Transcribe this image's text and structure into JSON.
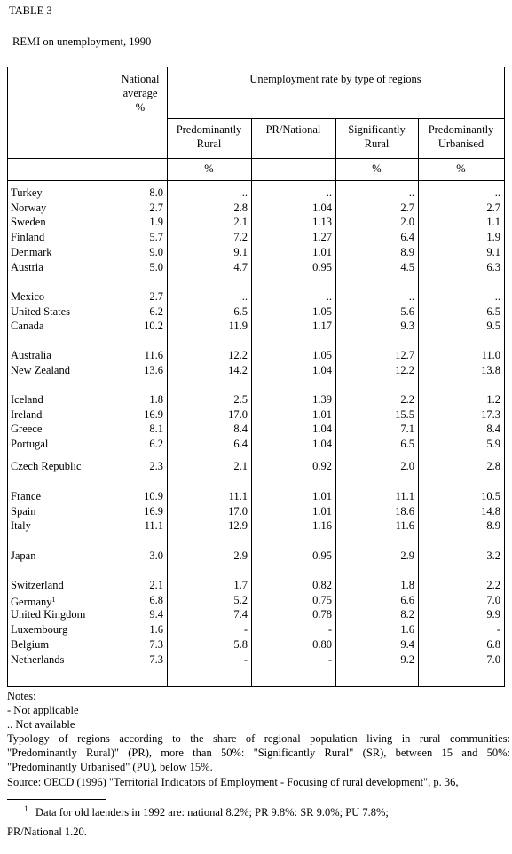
{
  "header": {
    "label": "TABLE 3",
    "title": "REMI on unemployment, 1990"
  },
  "table": {
    "national_header": [
      "National",
      "average",
      "%"
    ],
    "group_header": "Unemployment rate by type of regions",
    "columns": [
      [
        "Predominantly",
        "Rural"
      ],
      [
        "PR/National"
      ],
      [
        "Significantly",
        "Rural"
      ],
      [
        "Predominantly",
        "Urbanised"
      ]
    ],
    "units": [
      "%",
      "%",
      "%"
    ],
    "groups": [
      [
        {
          "cells": [
            "Turkey",
            "8.0",
            "..",
            "..",
            "..",
            ".."
          ]
        },
        {
          "cells": [
            "Norway",
            "2.7",
            "2.8",
            "1.04",
            "2.7",
            "2.7"
          ]
        },
        {
          "cells": [
            "Sweden",
            "1.9",
            "2.1",
            "1.13",
            "2.0",
            "1.1"
          ]
        },
        {
          "cells": [
            "Finland",
            "5.7",
            "7.2",
            "1.27",
            "6.4",
            "1.9"
          ]
        },
        {
          "cells": [
            "Denmark",
            "9.0",
            "9.1",
            "1.01",
            "8.9",
            "9.1"
          ]
        },
        {
          "cells": [
            "Austria",
            "5.0",
            "4.7",
            "0.95",
            "4.5",
            "6.3"
          ]
        }
      ],
      [
        {
          "cells": [
            "Mexico",
            "2.7",
            "..",
            "..",
            "..",
            ".."
          ]
        },
        {
          "cells": [
            "United States",
            "6.2",
            "6.5",
            "1.05",
            "5.6",
            "6.5"
          ]
        },
        {
          "cells": [
            "Canada",
            "10.2",
            "11.9",
            "1.17",
            "9.3",
            "9.5"
          ]
        }
      ],
      [
        {
          "cells": [
            "Australia",
            "11.6",
            "12.2",
            "1.05",
            "12.7",
            "11.0"
          ]
        },
        {
          "cells": [
            "New Zealand",
            "13.6",
            "14.2",
            "1.04",
            "12.2",
            "13.8"
          ]
        }
      ],
      [
        {
          "cells": [
            "Iceland",
            "1.8",
            "2.5",
            "1.39",
            "2.2",
            "1.2"
          ]
        },
        {
          "cells": [
            "Ireland",
            "16.9",
            "17.0",
            "1.01",
            "15.5",
            "17.3"
          ]
        },
        {
          "cells": [
            "Greece",
            "8.1",
            "8.4",
            "1.04",
            "7.1",
            "8.4"
          ]
        },
        {
          "cells": [
            "Portugal",
            "6.2",
            "6.4",
            "1.04",
            "6.5",
            "5.9"
          ]
        }
      ],
      [
        {
          "cells": [
            "Czech Republic",
            "2.3",
            "2.1",
            "0.92",
            "2.0",
            "2.8"
          ]
        }
      ],
      [
        {
          "cells": [
            "France",
            "10.9",
            "11.1",
            "1.01",
            "11.1",
            "10.5"
          ]
        },
        {
          "cells": [
            "Spain",
            "16.9",
            "17.0",
            "1.01",
            "18.6",
            "14.8"
          ]
        },
        {
          "cells": [
            "Italy",
            "11.1",
            "12.9",
            "1.16",
            "11.6",
            "8.9"
          ]
        }
      ],
      [
        {
          "cells": [
            "Japan",
            "3.0",
            "2.9",
            "0.95",
            "2.9",
            "3.2"
          ]
        }
      ],
      [
        {
          "cells": [
            "Switzerland",
            "2.1",
            "1.7",
            "0.82",
            "1.8",
            "2.2"
          ]
        },
        {
          "cells": [
            "Germany",
            "6.8",
            "5.2",
            "0.75",
            "6.6",
            "7.0"
          ],
          "sup": "1"
        },
        {
          "cells": [
            "United Kingdom",
            "9.4",
            "7.4",
            "0.78",
            "8.2",
            "9.9"
          ]
        },
        {
          "cells": [
            "Luxembourg",
            "1.6",
            "-",
            "-",
            "1.6",
            "-"
          ]
        },
        {
          "cells": [
            "Belgium",
            "7.3",
            "5.8",
            "0.80",
            "9.4",
            "6.8"
          ]
        },
        {
          "cells": [
            "Netherlands",
            "7.3",
            "-",
            "-",
            "9.2",
            "7.0"
          ]
        }
      ]
    ]
  },
  "notes": {
    "title": "Notes:",
    "items": [
      "-  Not applicable",
      ".. Not available"
    ],
    "typology": [
      "Typology of regions according to the share of regional population living in rural communities:",
      "\"Predominantly Rural)\" (PR), more than 50%: \"Significantly Rural\" (SR), between 15 and 50%:",
      "\"Predominantly Urbanised\" (PU), below 15%."
    ],
    "source": {
      "label": "Source",
      "text": ": OECD (1996) \"Territorial Indicators of Employment - Focusing of rural development\", p. 36,"
    }
  },
  "footnote": {
    "marker": "1",
    "lines": [
      "Data for old laenders in 1992 are: national 8.2%; PR 9.8%: SR 9.0%; PU 7.8%;",
      "PR/National 1.20."
    ]
  }
}
